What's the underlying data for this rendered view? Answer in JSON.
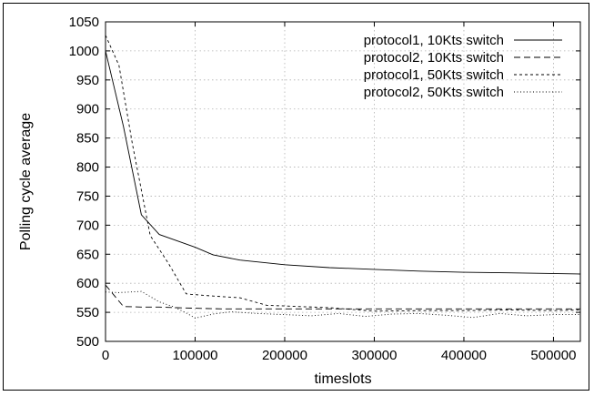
{
  "chart_data": {
    "type": "line",
    "title": "",
    "xlabel": "timeslots",
    "ylabel": "Polling cycle average",
    "xlim": [
      0,
      530000
    ],
    "ylim": [
      500,
      1050
    ],
    "xticks": [
      0,
      100000,
      200000,
      300000,
      400000,
      500000
    ],
    "yticks": [
      500,
      550,
      600,
      650,
      700,
      750,
      800,
      850,
      900,
      950,
      1000,
      1050
    ],
    "grid": true,
    "legend_position": "top-right",
    "series": [
      {
        "name": "protocol1, 10Kts switch",
        "style": "solid",
        "x": [
          0,
          20000,
          40000,
          60000,
          80000,
          100000,
          120000,
          150000,
          200000,
          250000,
          300000,
          350000,
          400000,
          450000,
          530000
        ],
        "y": [
          1000,
          870,
          718,
          684,
          673,
          662,
          649,
          640,
          632,
          627,
          624,
          621,
          619,
          618,
          616
        ]
      },
      {
        "name": "protocol2, 10Kts switch",
        "style": "dashed",
        "x": [
          0,
          20000,
          40000,
          60000,
          80000,
          100000,
          130000,
          160000,
          200000,
          260000,
          300000,
          350000,
          400000,
          450000,
          500000,
          530000
        ],
        "y": [
          597,
          560,
          559,
          559,
          558,
          557,
          556,
          556,
          556,
          556,
          556,
          556,
          556,
          556,
          556,
          556
        ]
      },
      {
        "name": "protocol1, 50Kts switch",
        "style": "short-dashed",
        "x": [
          0,
          15000,
          30000,
          50000,
          70000,
          90000,
          95000,
          120000,
          150000,
          180000,
          200000,
          250000,
          300000,
          350000,
          400000,
          450000,
          500000,
          530000
        ],
        "y": [
          1027,
          975,
          840,
          682,
          635,
          582,
          581,
          578,
          575,
          562,
          561,
          558,
          552,
          553,
          553,
          554,
          553,
          554
        ]
      },
      {
        "name": "protocol2, 50Kts switch",
        "style": "dotted",
        "x": [
          0,
          15000,
          40000,
          60000,
          75000,
          90000,
          100000,
          120000,
          140000,
          170000,
          200000,
          230000,
          260000,
          290000,
          320000,
          350000,
          380000,
          410000,
          440000,
          470000,
          500000,
          530000
        ],
        "y": [
          585,
          584,
          586,
          568,
          560,
          549,
          540,
          547,
          551,
          548,
          546,
          544,
          548,
          543,
          547,
          548,
          545,
          541,
          548,
          544,
          546,
          546
        ]
      }
    ]
  }
}
